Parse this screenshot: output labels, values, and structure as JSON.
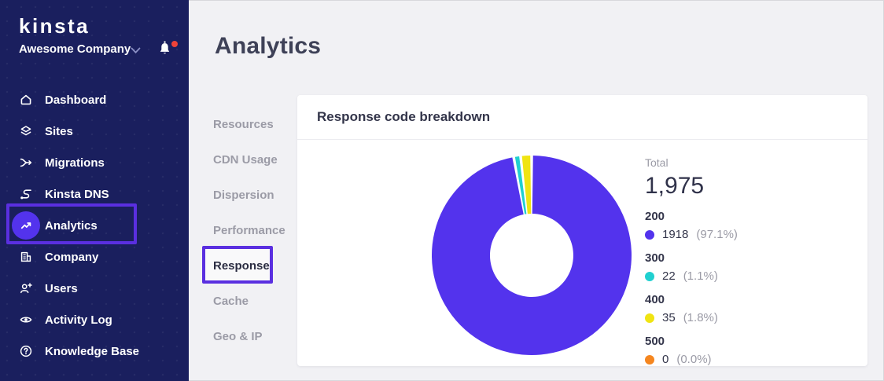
{
  "colors": {
    "sidebar-bg": "#1a1f5e",
    "accent": "#5333ed",
    "annotation": "#5a2fe0",
    "badge-red": "#ef4339"
  },
  "brand": {
    "logo_text": "kinsta",
    "company_name": "Awesome Company"
  },
  "sidebar": {
    "items": [
      {
        "label": "Dashboard"
      },
      {
        "label": "Sites"
      },
      {
        "label": "Migrations"
      },
      {
        "label": "Kinsta DNS"
      },
      {
        "label": "Analytics"
      },
      {
        "label": "Company"
      },
      {
        "label": "Users"
      },
      {
        "label": "Activity Log"
      },
      {
        "label": "Knowledge Base"
      }
    ],
    "active_item": "Analytics"
  },
  "header": {
    "page_title": "Analytics"
  },
  "subnav": {
    "items": [
      {
        "label": "Resources"
      },
      {
        "label": "CDN Usage"
      },
      {
        "label": "Dispersion"
      },
      {
        "label": "Performance"
      },
      {
        "label": "Response"
      },
      {
        "label": "Cache"
      },
      {
        "label": "Geo & IP"
      }
    ],
    "active_item": "Response"
  },
  "card": {
    "title": "Response code breakdown"
  },
  "chart_data": {
    "type": "pie",
    "subtype": "donut",
    "title": "Response code breakdown",
    "total": 1975,
    "total_label": "Total",
    "total_display": "1,975",
    "donut_hole_ratio": 0.42,
    "start_angle_deg": 0,
    "direction": "clockwise",
    "legend_position": "right",
    "items": [
      {
        "code": "200",
        "value": 1918,
        "pct": 97.1,
        "value_display": "1918",
        "pct_display": "(97.1%)",
        "color": "#5333ed"
      },
      {
        "code": "300",
        "value": 22,
        "pct": 1.1,
        "value_display": "22",
        "pct_display": "(1.1%)",
        "color": "#20d0d0"
      },
      {
        "code": "400",
        "value": 35,
        "pct": 1.8,
        "value_display": "35",
        "pct_display": "(1.8%)",
        "color": "#f0e412"
      },
      {
        "code": "500",
        "value": 0,
        "pct": 0.0,
        "value_display": "0",
        "pct_display": "(0.0%)",
        "color": "#f5861f"
      }
    ]
  }
}
